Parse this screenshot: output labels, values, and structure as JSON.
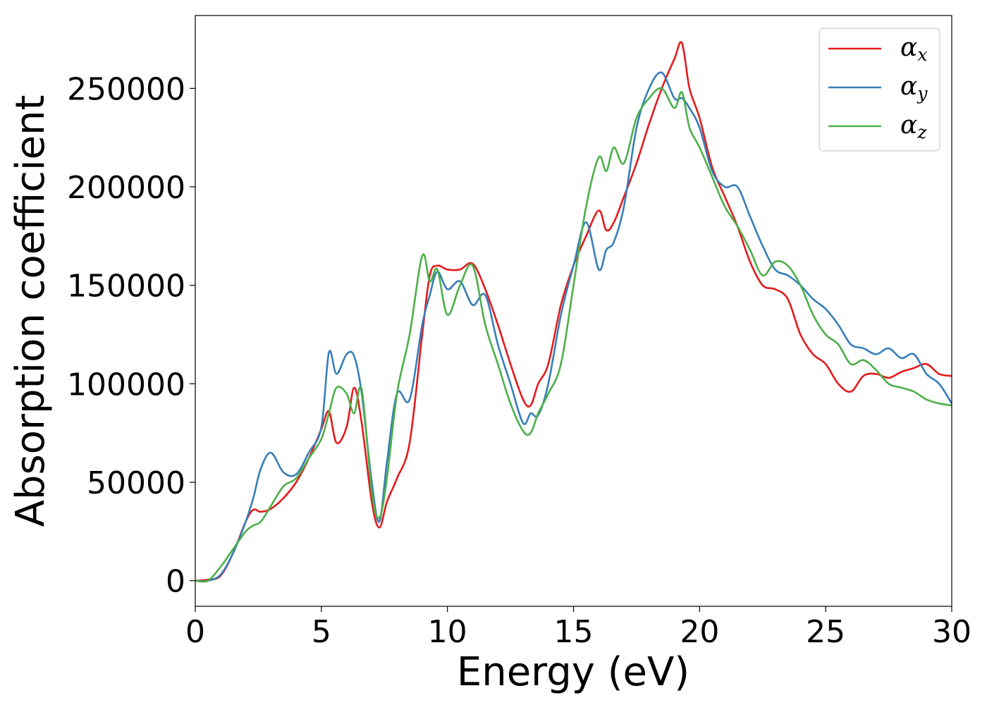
{
  "chart_data": {
    "type": "line",
    "xlabel": "Energy (eV)",
    "ylabel": "Absorption coefficient",
    "xlim": [
      0,
      30
    ],
    "ylim": [
      -13000,
      287000
    ],
    "xticks": [
      0,
      5,
      10,
      15,
      20,
      25,
      30
    ],
    "xtick_labels": [
      "0",
      "5",
      "10",
      "15",
      "20",
      "25",
      "30"
    ],
    "yticks": [
      0,
      50000,
      100000,
      150000,
      200000,
      250000
    ],
    "ytick_labels": [
      "0",
      "50000",
      "100000",
      "150000",
      "200000",
      "250000"
    ],
    "grid": false,
    "legend_position": "top-right",
    "series": [
      {
        "name": "α_x",
        "name_base": "α",
        "name_sub": "x",
        "color": "#e41a1c",
        "x": [
          0,
          0.5,
          1,
          1.5,
          2,
          2.3,
          2.6,
          3,
          3.5,
          4,
          4.5,
          5,
          5.3,
          5.6,
          6,
          6.3,
          6.6,
          7,
          7.3,
          7.6,
          8,
          8.5,
          9,
          9.3,
          9.6,
          10,
          10.5,
          11,
          11.5,
          12,
          12.5,
          13,
          13.3,
          13.6,
          14,
          14.5,
          15,
          15.5,
          16,
          16.3,
          16.6,
          17,
          17.5,
          18,
          18.5,
          19,
          19.3,
          19.6,
          20,
          20.5,
          21,
          21.5,
          22,
          22.5,
          23,
          23.5,
          24,
          24.5,
          25,
          25.5,
          26,
          26.5,
          27,
          27.5,
          28,
          28.5,
          29,
          29.5,
          30
        ],
        "y": [
          0,
          500,
          2500,
          14000,
          30000,
          36000,
          35000,
          36500,
          42000,
          50000,
          62000,
          77000,
          86000,
          70000,
          78000,
          98000,
          80000,
          40000,
          27000,
          40000,
          52000,
          70000,
          125000,
          155000,
          160000,
          158000,
          158000,
          161000,
          148000,
          130000,
          110000,
          92000,
          89000,
          100000,
          110000,
          140000,
          160000,
          175000,
          188000,
          178000,
          182000,
          195000,
          212000,
          232000,
          250000,
          265000,
          273000,
          250000,
          235000,
          210000,
          195000,
          180000,
          162000,
          150000,
          148000,
          143000,
          125000,
          115000,
          110000,
          100000,
          96000,
          104000,
          105000,
          103000,
          106000,
          108000,
          110000,
          105000,
          104000
        ]
      },
      {
        "name": "α_y",
        "name_base": "α",
        "name_sub": "y",
        "color": "#377eb8",
        "x": [
          0,
          0.5,
          1,
          1.5,
          2,
          2.3,
          2.6,
          3,
          3.5,
          4,
          4.5,
          5,
          5.3,
          5.6,
          6,
          6.3,
          6.6,
          7,
          7.3,
          7.6,
          8,
          8.5,
          9,
          9.3,
          9.6,
          10,
          10.5,
          11,
          11.5,
          12,
          12.5,
          13,
          13.3,
          13.6,
          14,
          14.5,
          15,
          15.5,
          16,
          16.3,
          16.6,
          17,
          17.5,
          18,
          18.5,
          19,
          19.3,
          19.6,
          20,
          20.5,
          21,
          21.5,
          22,
          22.5,
          23,
          23.5,
          24,
          24.5,
          25,
          25.5,
          26,
          26.5,
          27,
          27.5,
          28,
          28.5,
          29,
          29.5,
          30
        ],
        "y": [
          0,
          0,
          3000,
          14000,
          30000,
          42000,
          57000,
          65000,
          55000,
          54000,
          65000,
          78000,
          116000,
          105000,
          115000,
          114000,
          95000,
          50000,
          30000,
          60000,
          95000,
          92000,
          130000,
          145000,
          157000,
          148000,
          152000,
          140000,
          145000,
          120000,
          100000,
          80000,
          85000,
          84000,
          100000,
          135000,
          160000,
          182000,
          158000,
          168000,
          172000,
          190000,
          230000,
          250000,
          258000,
          245000,
          245000,
          240000,
          230000,
          208000,
          200000,
          200000,
          185000,
          170000,
          158000,
          155000,
          150000,
          143000,
          138000,
          130000,
          120000,
          118000,
          115000,
          118000,
          113000,
          115000,
          105000,
          100000,
          90000
        ]
      },
      {
        "name": "α_z",
        "name_base": "α",
        "name_sub": "z",
        "color": "#4daf4a",
        "x": [
          0,
          0.5,
          1,
          1.5,
          2,
          2.3,
          2.6,
          3,
          3.5,
          4,
          4.5,
          5,
          5.3,
          5.6,
          6,
          6.3,
          6.6,
          7,
          7.3,
          7.6,
          8,
          8.5,
          9,
          9.3,
          9.6,
          10,
          10.5,
          11,
          11.5,
          12,
          12.5,
          13,
          13.3,
          13.6,
          14,
          14.5,
          15,
          15.5,
          16,
          16.3,
          16.6,
          17,
          17.5,
          18,
          18.5,
          19,
          19.3,
          19.6,
          20,
          20.5,
          21,
          21.5,
          22,
          22.5,
          23,
          23.5,
          24,
          24.5,
          25,
          25.5,
          26,
          26.5,
          27,
          27.5,
          28,
          28.5,
          29,
          29.5,
          30
        ],
        "y": [
          0,
          0,
          7000,
          16000,
          25000,
          28000,
          30000,
          38000,
          48000,
          52000,
          62000,
          72000,
          85000,
          98000,
          95000,
          85000,
          97000,
          45000,
          32000,
          52000,
          95000,
          125000,
          165000,
          152000,
          158000,
          135000,
          150000,
          160000,
          130000,
          110000,
          90000,
          76000,
          75000,
          85000,
          95000,
          110000,
          150000,
          190000,
          215000,
          208000,
          220000,
          212000,
          235000,
          245000,
          250000,
          240000,
          248000,
          230000,
          220000,
          205000,
          190000,
          180000,
          168000,
          155000,
          162000,
          160000,
          150000,
          135000,
          125000,
          120000,
          110000,
          112000,
          107000,
          100000,
          98000,
          96000,
          92000,
          90000,
          89000
        ]
      }
    ]
  }
}
